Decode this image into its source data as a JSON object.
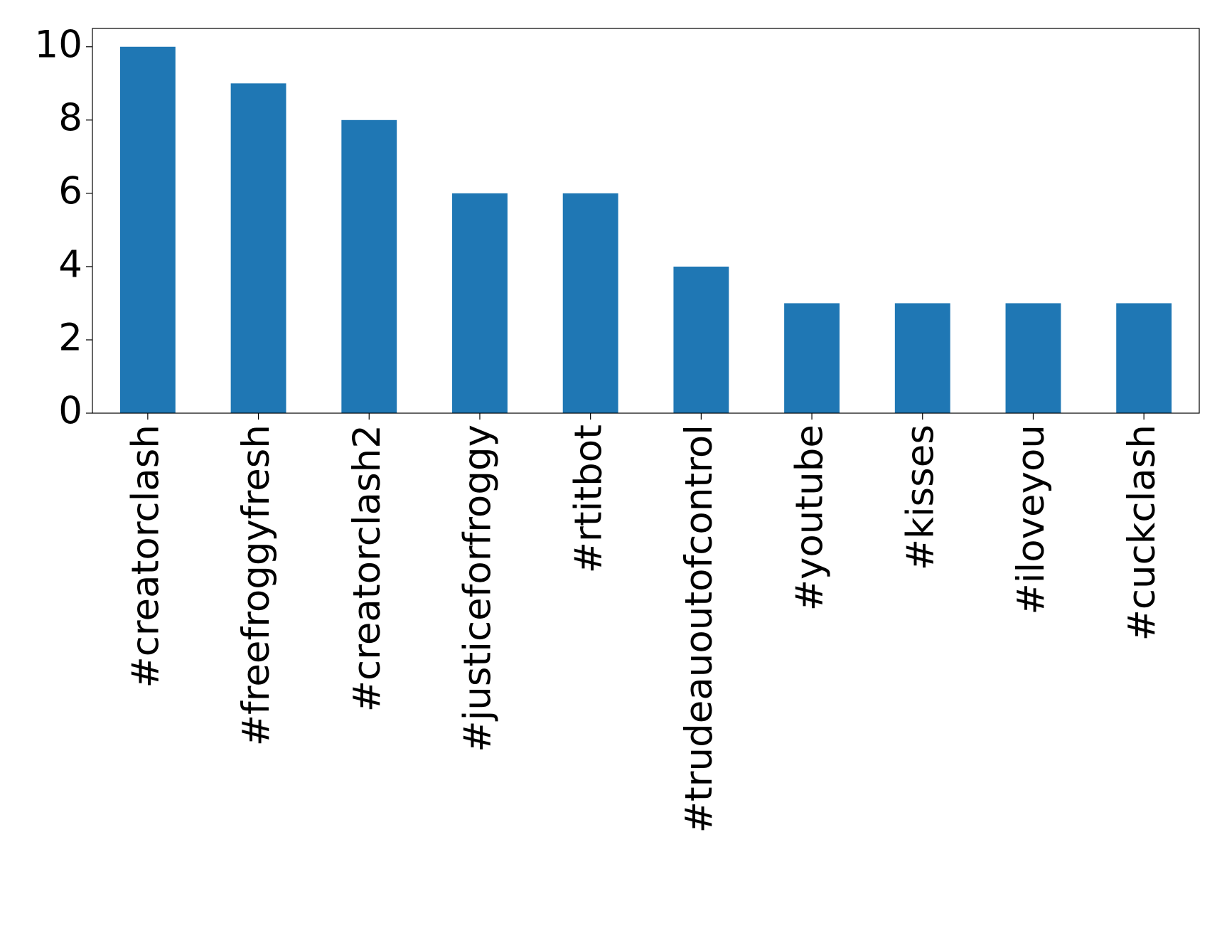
{
  "chart_data": {
    "type": "bar",
    "categories": [
      "#creatorclash",
      "#freefroggyfresh",
      "#creatorclash2",
      "#justiceforfroggy",
      "#rtitbot",
      "#trudeauoutofcontrol",
      "#youtube",
      "#kisses",
      "#iloveyou",
      "#cuckclash"
    ],
    "values": [
      10,
      9,
      8,
      6,
      6,
      4,
      3,
      3,
      3,
      3
    ],
    "color": "#1f77b4",
    "ylim": [
      0,
      10.5
    ],
    "yticks": [
      0,
      2,
      4,
      6,
      8,
      10
    ],
    "grid": false
  }
}
